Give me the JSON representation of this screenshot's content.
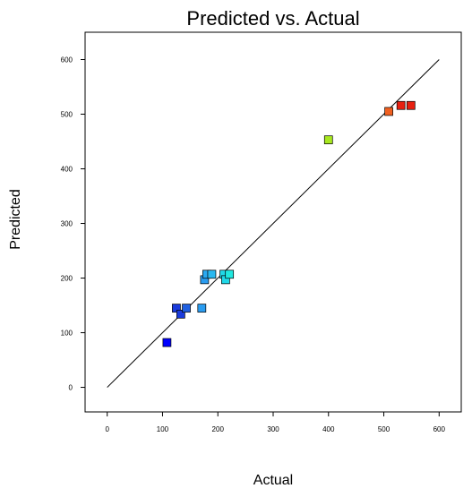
{
  "chart_data": {
    "type": "scatter",
    "title": "Predicted vs. Actual",
    "xlabel": "Actual",
    "ylabel": "Predicted",
    "xlim": [
      -40,
      640
    ],
    "ylim": [
      -45,
      650
    ],
    "x_ticks": [
      0,
      100,
      200,
      300,
      400,
      500,
      600
    ],
    "y_ticks": [
      0,
      100,
      200,
      300,
      400,
      500,
      600
    ],
    "grid": false,
    "reference_line": {
      "from": [
        0,
        0
      ],
      "to": [
        600,
        600
      ],
      "color": "#000000"
    },
    "points": [
      {
        "x": 108,
        "y": 82,
        "color": "#0000ff"
      },
      {
        "x": 125,
        "y": 145,
        "color": "#1a3bdc"
      },
      {
        "x": 133,
        "y": 134,
        "color": "#1a3bdc"
      },
      {
        "x": 143,
        "y": 145,
        "color": "#2060e0"
      },
      {
        "x": 171,
        "y": 145,
        "color": "#2a9cf0"
      },
      {
        "x": 176,
        "y": 197,
        "color": "#2a9cf0"
      },
      {
        "x": 180,
        "y": 207,
        "color": "#2aa8f0"
      },
      {
        "x": 189,
        "y": 207,
        "color": "#2ab8f0"
      },
      {
        "x": 211,
        "y": 207,
        "color": "#20d8e8"
      },
      {
        "x": 214,
        "y": 197,
        "color": "#20d8e8"
      },
      {
        "x": 221,
        "y": 207,
        "color": "#20e8e0"
      },
      {
        "x": 400,
        "y": 453,
        "color": "#a8e820"
      },
      {
        "x": 509,
        "y": 505,
        "color": "#f06020"
      },
      {
        "x": 531,
        "y": 516,
        "color": "#e82010"
      },
      {
        "x": 549,
        "y": 516,
        "color": "#e82010"
      }
    ]
  }
}
